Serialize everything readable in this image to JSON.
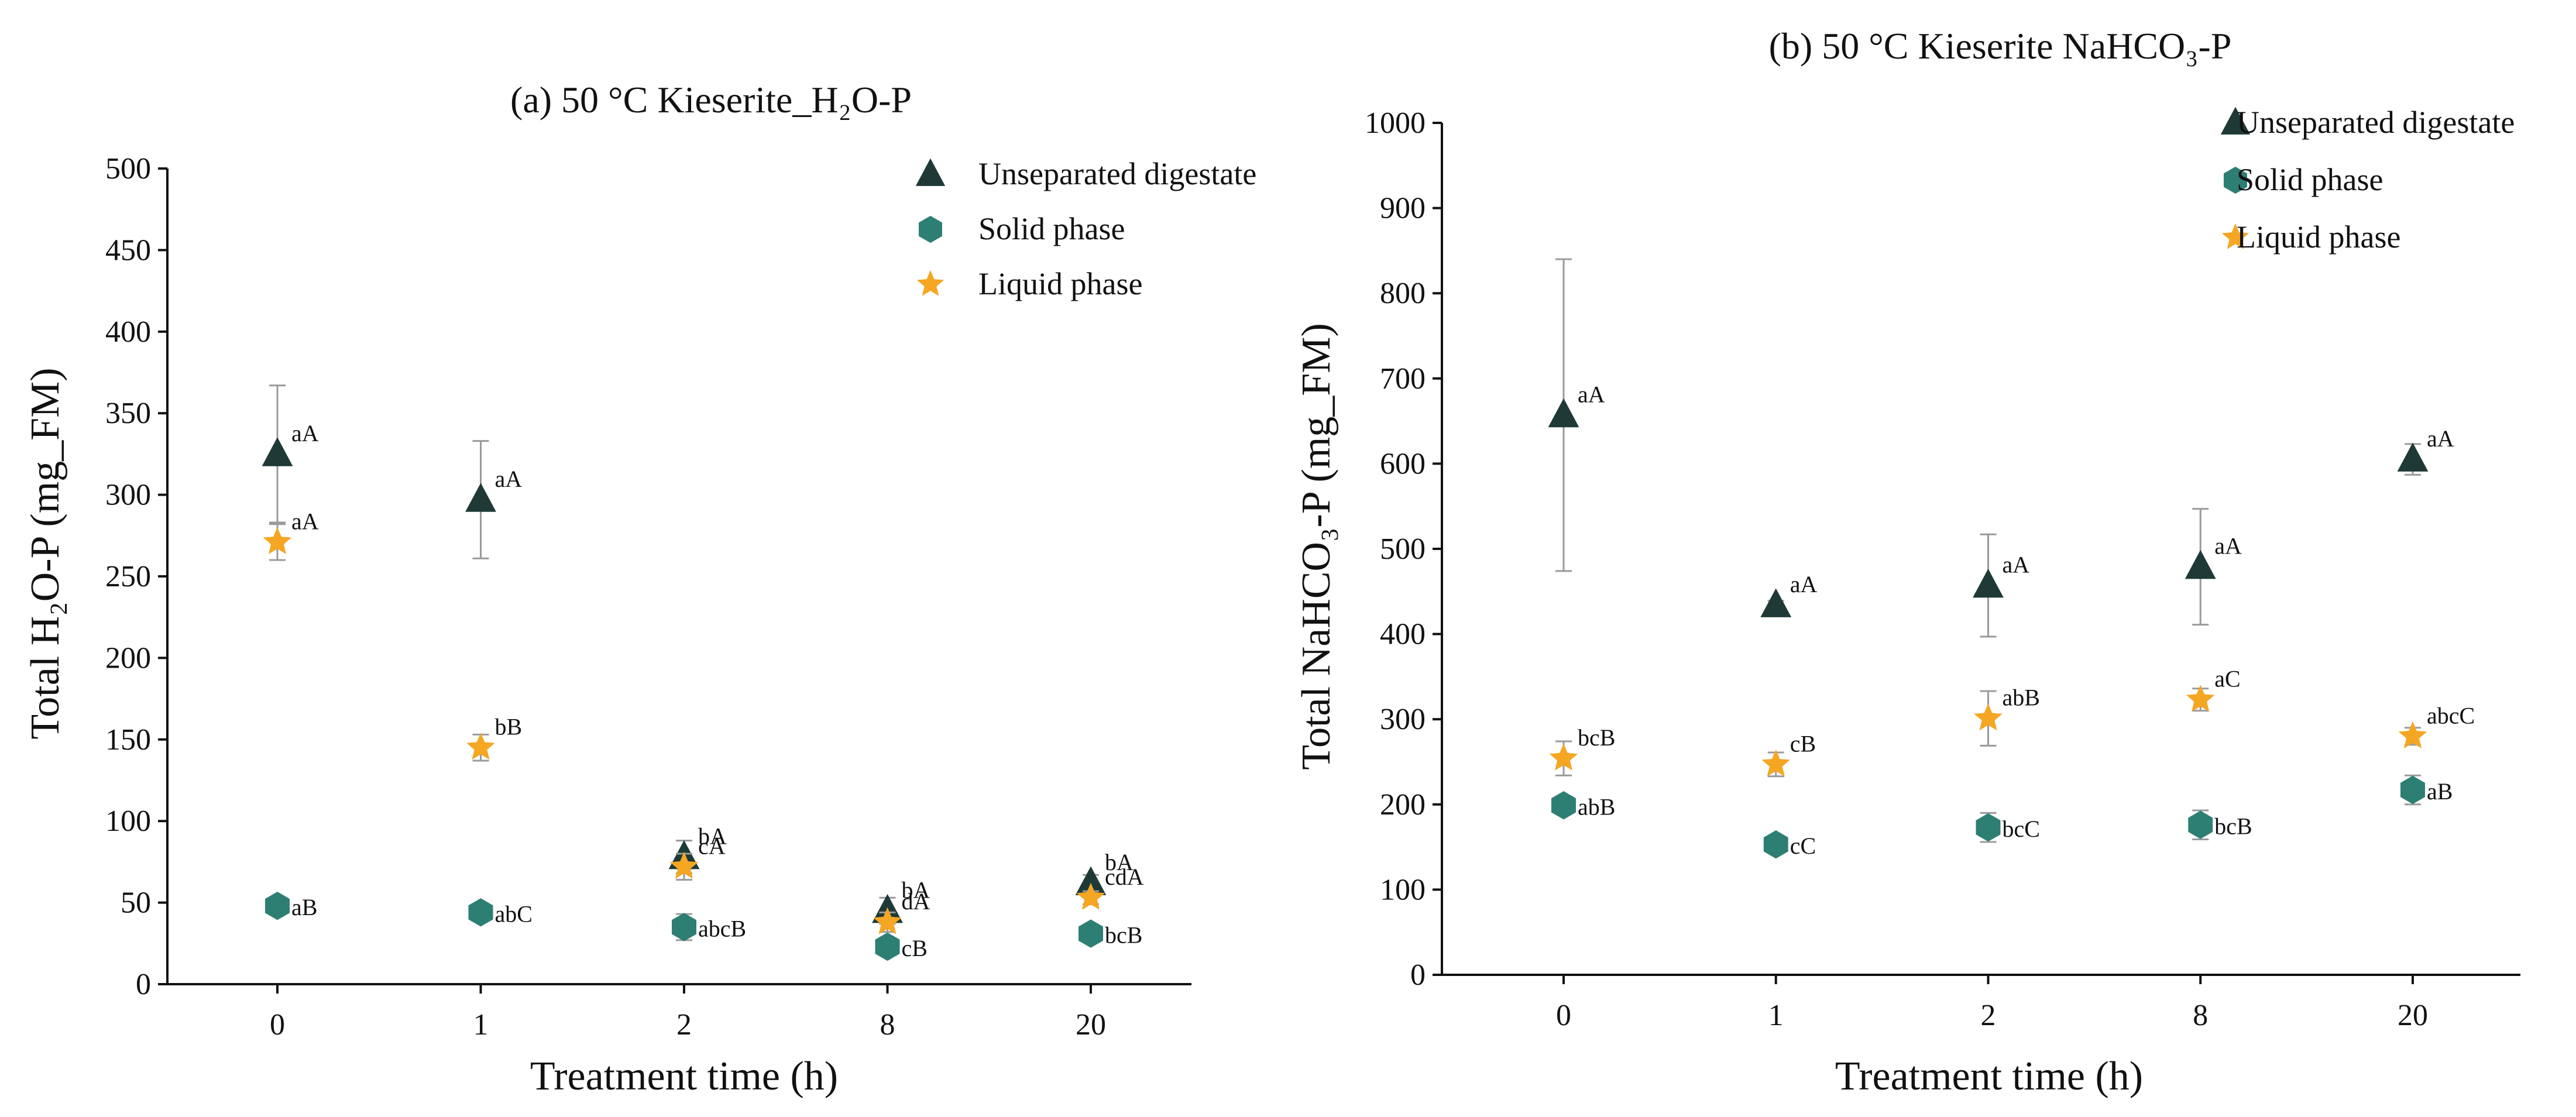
{
  "colors": {
    "unseparated": "#1f3a36",
    "solid": "#2e7f73",
    "liquid": "#f5a623",
    "error_bar": "#9a9a9a",
    "axis": "#111111"
  },
  "chart_data": [
    {
      "type": "scatter",
      "title": "(a) 50 °C Kieserite_H₂O-P",
      "xlabel": "Treatment time (h)",
      "ylabel": "Total H₂O-P (mg_FM)",
      "categories": [
        "0",
        "1",
        "2",
        "8",
        "20"
      ],
      "ylim": [
        0,
        500
      ],
      "yticks": [
        0,
        50,
        100,
        150,
        200,
        250,
        300,
        350,
        400,
        450,
        500
      ],
      "legend_position": "top-right",
      "series": [
        {
          "name": "Unseparated digestate",
          "marker": "triangle",
          "color_key": "unseparated",
          "values": [
            325,
            297,
            78,
            45,
            62
          ],
          "errors": [
            42,
            36,
            10,
            8,
            5
          ],
          "labels": [
            "aA",
            "aA",
            "bA",
            "bA",
            "bA"
          ]
        },
        {
          "name": "Solid phase",
          "marker": "hexagon",
          "color_key": "solid",
          "values": [
            48,
            44,
            35,
            23,
            31
          ],
          "errors": [
            3,
            3,
            8,
            3,
            3
          ],
          "labels": [
            "aB",
            "abC",
            "abcB",
            "cB",
            "bcB"
          ]
        },
        {
          "name": "Liquid phase",
          "marker": "star",
          "color_key": "liquid",
          "values": [
            271,
            145,
            72,
            38,
            53
          ],
          "errors": [
            11,
            8,
            8,
            6,
            4
          ],
          "labels": [
            "aA",
            "bB",
            "cA",
            "dA",
            "cdA"
          ]
        }
      ]
    },
    {
      "type": "scatter",
      "title": "(b) 50 °C Kieserite NaHCO₃-P",
      "xlabel": "Treatment time (h)",
      "ylabel": "Total NaHCO₃-P (mg_FM)",
      "categories": [
        "0",
        "1",
        "2",
        "8",
        "20"
      ],
      "ylim": [
        0,
        1000
      ],
      "yticks": [
        0,
        100,
        200,
        300,
        400,
        500,
        600,
        700,
        800,
        900,
        1000
      ],
      "legend_position": "top-right",
      "series": [
        {
          "name": "Unseparated digestate",
          "marker": "triangle",
          "color_key": "unseparated",
          "values": [
            657,
            434,
            457,
            479,
            605
          ],
          "errors": [
            183,
            5,
            60,
            68,
            18
          ],
          "labels": [
            "aA",
            "aA",
            "aA",
            "aA",
            "aA"
          ]
        },
        {
          "name": "Solid phase",
          "marker": "hexagon",
          "color_key": "solid",
          "values": [
            199,
            153,
            173,
            176,
            217
          ],
          "errors": [
            5,
            5,
            17,
            17,
            17
          ],
          "labels": [
            "abB",
            "cC",
            "bcC",
            "bcB",
            "aB"
          ]
        },
        {
          "name": "Liquid phase",
          "marker": "star",
          "color_key": "liquid",
          "values": [
            254,
            247,
            301,
            323,
            280
          ],
          "errors": [
            20,
            14,
            32,
            13,
            10
          ],
          "labels": [
            "bcB",
            "cB",
            "abB",
            "aC",
            "abcC"
          ]
        }
      ]
    }
  ]
}
